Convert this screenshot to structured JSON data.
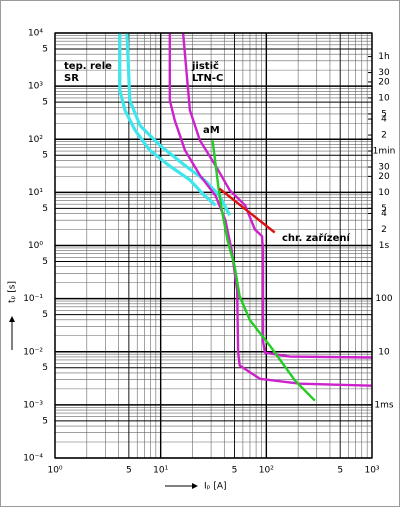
{
  "chart_data": {
    "type": "line",
    "xlabel": "Iₚ  [A]",
    "ylabel": "tₚ  [s]",
    "xscale": "log",
    "yscale": "log",
    "grid": true,
    "minor_grid": true,
    "xlim": [
      1,
      1000
    ],
    "ylim": [
      0.0001,
      10000
    ],
    "y2lim": [
      0.0001,
      10000
    ],
    "xticks": [
      {
        "value": 1,
        "label": "10⁰"
      },
      5,
      {
        "value": 10,
        "label": "10¹"
      },
      {
        "value": 50,
        "label": "5"
      },
      {
        "value": 100,
        "label": "10²"
      },
      {
        "value": 500,
        "label": "5"
      },
      {
        "value": 1000,
        "label": "10³"
      }
    ],
    "yticks": [
      {
        "value": 10000,
        "label": "10⁴"
      },
      {
        "value": 5000,
        "label": "5"
      },
      {
        "value": 1000,
        "label": "10³"
      },
      {
        "value": 500,
        "label": "5"
      },
      {
        "value": 100,
        "label": "10²"
      },
      {
        "value": 50,
        "label": "5"
      },
      {
        "value": 10,
        "label": "10¹"
      },
      5,
      {
        "value": 1,
        "label": "10⁰"
      },
      {
        "value": 0.5,
        "label": "5"
      },
      {
        "value": 0.1,
        "label": "10⁻¹"
      },
      {
        "value": 0.05,
        "label": "5"
      },
      {
        "value": 0.01,
        "label": "10⁻²"
      },
      {
        "value": 0.005,
        "label": "5"
      },
      {
        "value": 0.001,
        "label": "10⁻³"
      },
      {
        "value": 0.0005,
        "label": "5"
      },
      {
        "value": 0.0001,
        "label": "10⁻⁴"
      }
    ],
    "y2ticks": [
      {
        "value": 3600,
        "label": "1h"
      },
      {
        "value": 1800,
        "label": "30"
      },
      {
        "value": 1200,
        "label": "20"
      },
      {
        "value": 600,
        "label": "10"
      },
      {
        "value": 300,
        "label": "5"
      },
      {
        "value": 240,
        "label": "4"
      },
      {
        "value": 120,
        "label": "2"
      },
      {
        "value": 60,
        "label": "1min"
      },
      30,
      20,
      10,
      5,
      4,
      2,
      {
        "value": 1,
        "label": "1s"
      },
      {
        "value": 0.1,
        "label": "100"
      },
      {
        "value": 0.01,
        "label": "10"
      },
      {
        "value": 0.001,
        "label": "1ms"
      }
    ],
    "series": [
      {
        "color": "#3ee6ee",
        "x": [
          4.1,
          4.1,
          4.6,
          5.7,
          7.9,
          12,
          19,
          26,
          33
        ],
        "values": [
          10000,
          830,
          350,
          150,
          62,
          32,
          17,
          8.7,
          5.7
        ]
      },
      {
        "color": "#3ee6ee",
        "x": [
          4.8,
          5.1,
          6.4,
          9.9,
          17,
          26,
          36,
          45
        ],
        "values": [
          10000,
          540,
          180,
          76,
          32,
          17,
          8.7,
          3.7
        ]
      },
      {
        "color": "#cc22cc",
        "x": [
          12.2,
          12.2,
          13.6,
          17,
          23.5,
          33,
          41,
          47,
          53,
          54,
          56,
          87,
          208,
          1000
        ],
        "values": [
          10000,
          540,
          225,
          62,
          21,
          8.7,
          3.0,
          0.8,
          0.14,
          0.01,
          0.0055,
          0.0031,
          0.0025,
          0.0023
        ]
      },
      {
        "color": "#cc22cc",
        "x": [
          16.3,
          18.9,
          23.5,
          33,
          45,
          63,
          78,
          91,
          93,
          93,
          97,
          167,
          1000
        ],
        "values": [
          10000,
          350,
          95,
          32,
          11,
          5.7,
          2,
          1.5,
          0.8,
          0.016,
          0.0096,
          0.0081,
          0.0078
        ]
      },
      {
        "color": "#22cc22",
        "x": [
          31,
          35,
          38,
          43,
          50,
          56,
          70,
          108,
          186,
          288
        ],
        "values": [
          95,
          13.5,
          4.6,
          1.24,
          0.42,
          0.11,
          0.039,
          0.013,
          0.0029,
          0.0012
        ]
      },
      {
        "color": "#dd1111",
        "x": [
          36,
          120
        ],
        "values": [
          11.8,
          1.76
        ]
      }
    ],
    "annotations": [
      "tep. rele",
      "SR",
      "jistič",
      "LTN-C",
      "aM",
      "chr. zařízení"
    ]
  }
}
